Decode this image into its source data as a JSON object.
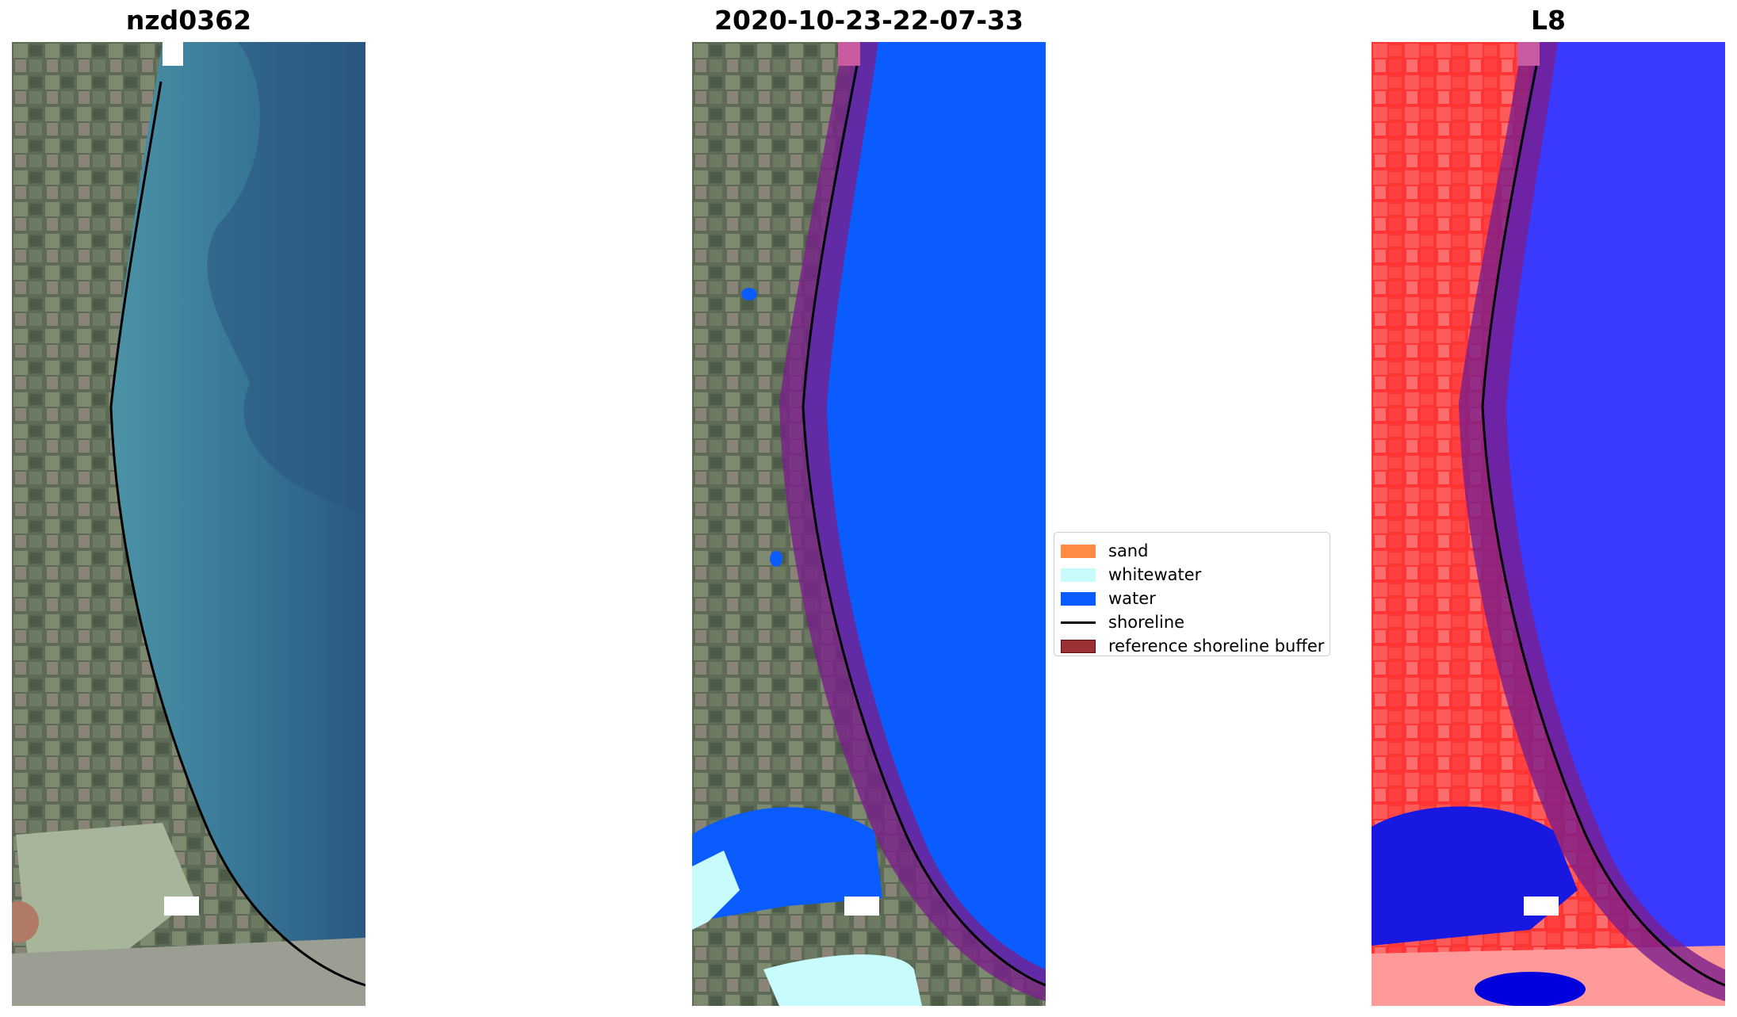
{
  "panels": [
    {
      "title": "nzd0362"
    },
    {
      "title": "2020-10-23-22-07-33"
    },
    {
      "title": "L8"
    }
  ],
  "legend": {
    "items": [
      {
        "label": "sand",
        "kind": "patch",
        "color": "#ff8c42"
      },
      {
        "label": "whitewater",
        "kind": "patch",
        "color": "#c8fcfc"
      },
      {
        "label": "water",
        "kind": "patch",
        "color": "#0a5cff"
      },
      {
        "label": "shoreline",
        "kind": "line",
        "color": "#000000"
      },
      {
        "label": "reference shoreline buffer",
        "kind": "patch",
        "color": "#9b3035"
      }
    ]
  },
  "colors": {
    "land_rgb": "#6e7566",
    "sea_rgb": "#2f6a8c",
    "water_class": "#0a5cff",
    "whitewater_class": "#c8fcfc",
    "buffer": "#7a1e8c",
    "land_swir": "#ff4040",
    "water_swir": "#3a3aff"
  }
}
